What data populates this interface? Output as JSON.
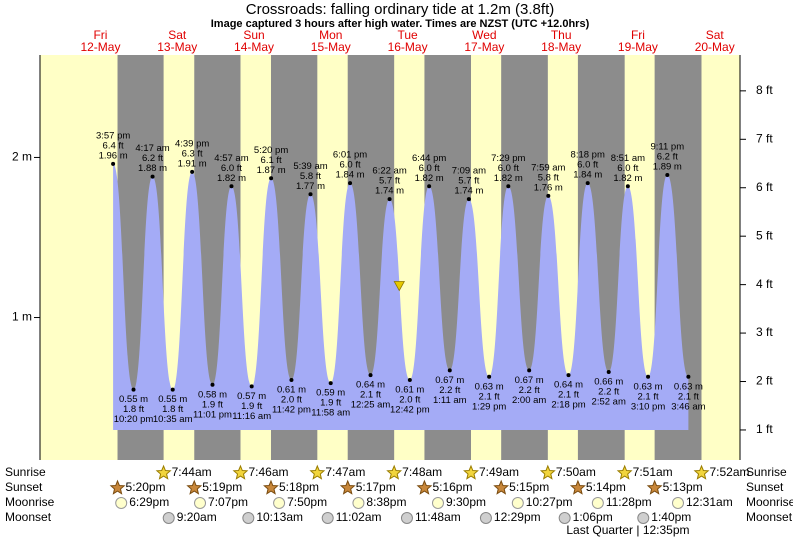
{
  "chart_data": {
    "type": "tide",
    "title": "Crossroads: falling  ordinary tide at 1.2m (3.8ft)",
    "subtitle": "Image captured 3 hours after high water. Times are NZST (UTC +12.0hrs)",
    "xlim": [
      -6.9,
      211.9
    ],
    "ylim": [
      0.11,
      2.64
    ],
    "yticks": [
      {
        "value": 1,
        "label": "1 m"
      },
      {
        "value": 2,
        "label": "2 m"
      }
    ],
    "y2lim": [
      0.38,
      8.74
    ],
    "y2ticks": [
      {
        "value": 1,
        "label": "1 ft"
      },
      {
        "value": 2,
        "label": "2 ft"
      },
      {
        "value": 3,
        "label": "3 ft"
      },
      {
        "value": 4,
        "label": "4 ft"
      },
      {
        "value": 5,
        "label": "5 ft"
      },
      {
        "value": 6,
        "label": "6 ft"
      },
      {
        "value": 7,
        "label": "7 ft"
      },
      {
        "value": 8,
        "label": "8 ft"
      }
    ],
    "colors": {
      "water": "#a4abf6",
      "night": "#8c8c8c",
      "day": "#ffffc6",
      "marker": "#e6c800"
    },
    "marker": {
      "x": 105.4,
      "m": 1.2
    },
    "row_labels": {
      "sunrise": "Sunrise",
      "sunset": "Sunset",
      "moonrise": "Moonrise",
      "moonset": "Moonset"
    },
    "days": [
      {
        "weekday": "Fri",
        "date": "12-May",
        "sunset": "5:20pm",
        "moonrise": "6:29pm",
        "tides": [
          {
            "time": "3:57 pm",
            "m": 1.96,
            "m_label": "1.96 m",
            "ft": 6.4,
            "ft_label": "6.4 ft"
          },
          {
            "time": "10:20 pm",
            "m": 0.55,
            "m_label": "0.55 m",
            "ft": 1.8,
            "ft_label": "1.8 ft"
          }
        ]
      },
      {
        "weekday": "Sat",
        "date": "13-May",
        "sunrise": "7:44am",
        "sunset": "5:19pm",
        "moonrise": "7:07pm",
        "moonset": "9:20am",
        "tides": [
          {
            "time": "4:17 am",
            "m": 1.88,
            "m_label": "1.88 m",
            "ft": 6.2,
            "ft_label": "6.2 ft"
          },
          {
            "time": "10:35 am",
            "m": 0.55,
            "m_label": "0.55 m",
            "ft": 1.8,
            "ft_label": "1.8 ft"
          },
          {
            "time": "4:39 pm",
            "m": 1.91,
            "m_label": "1.91 m",
            "ft": 6.3,
            "ft_label": "6.3 ft"
          },
          {
            "time": "11:01 pm",
            "m": 0.58,
            "m_label": "0.58 m",
            "ft": 1.9,
            "ft_label": "1.9 ft"
          }
        ]
      },
      {
        "weekday": "Sun",
        "date": "14-May",
        "sunrise": "7:46am",
        "sunset": "5:18pm",
        "moonrise": "7:50pm",
        "moonset": "10:13am",
        "tides": [
          {
            "time": "4:57 am",
            "m": 1.82,
            "m_label": "1.82 m",
            "ft": 6.0,
            "ft_label": "6.0 ft"
          },
          {
            "time": "11:16 am",
            "m": 0.57,
            "m_label": "0.57 m",
            "ft": 1.9,
            "ft_label": "1.9 ft"
          },
          {
            "time": "5:20 pm",
            "m": 1.87,
            "m_label": "1.87 m",
            "ft": 6.1,
            "ft_label": "6.1 ft"
          },
          {
            "time": "11:42 pm",
            "m": 0.61,
            "m_label": "0.61 m",
            "ft": 2.0,
            "ft_label": "2.0 ft"
          }
        ]
      },
      {
        "weekday": "Mon",
        "date": "15-May",
        "sunrise": "7:47am",
        "sunset": "5:17pm",
        "moonrise": "8:38pm",
        "moonset": "11:02am",
        "tides": [
          {
            "time": "5:39 am",
            "m": 1.77,
            "m_label": "1.77 m",
            "ft": 5.8,
            "ft_label": "5.8 ft"
          },
          {
            "time": "11:58 am",
            "m": 0.59,
            "m_label": "0.59 m",
            "ft": 1.9,
            "ft_label": "1.9 ft"
          },
          {
            "time": "6:01 pm",
            "m": 1.84,
            "m_label": "1.84 m",
            "ft": 6.0,
            "ft_label": "6.0 ft"
          }
        ]
      },
      {
        "weekday": "Tue",
        "date": "16-May",
        "sunrise": "7:48am",
        "sunset": "5:16pm",
        "moonrise": "9:30pm",
        "moonset": "11:48am",
        "tides": [
          {
            "time": "12:25 am",
            "m": 0.64,
            "m_label": "0.64 m",
            "ft": 2.1,
            "ft_label": "2.1 ft"
          },
          {
            "time": "6:22 am",
            "m": 1.74,
            "m_label": "1.74 m",
            "ft": 5.7,
            "ft_label": "5.7 ft"
          },
          {
            "time": "12:42 pm",
            "m": 0.61,
            "m_label": "0.61 m",
            "ft": 2.0,
            "ft_label": "2.0 ft"
          },
          {
            "time": "6:44 pm",
            "m": 1.82,
            "m_label": "1.82 m",
            "ft": 6.0,
            "ft_label": "6.0 ft"
          }
        ]
      },
      {
        "weekday": "Wed",
        "date": "17-May",
        "sunrise": "7:49am",
        "sunset": "5:15pm",
        "moonrise": "10:27pm",
        "moonset": "12:29pm",
        "tides": [
          {
            "time": "1:11 am",
            "m": 0.67,
            "m_label": "0.67 m",
            "ft": 2.2,
            "ft_label": "2.2 ft"
          },
          {
            "time": "7:09 am",
            "m": 1.74,
            "m_label": "1.74 m",
            "ft": 5.7,
            "ft_label": "5.7 ft"
          },
          {
            "time": "1:29 pm",
            "m": 0.63,
            "m_label": "0.63 m",
            "ft": 2.1,
            "ft_label": "2.1 ft"
          },
          {
            "time": "7:29 pm",
            "m": 1.82,
            "m_label": "1.82 m",
            "ft": 6.0,
            "ft_label": "6.0 ft"
          }
        ]
      },
      {
        "weekday": "Thu",
        "date": "18-May",
        "sunrise": "7:50am",
        "sunset": "5:14pm",
        "moonrise": "11:28pm",
        "moonset": "1:06pm",
        "tides": [
          {
            "time": "2:00 am",
            "m": 0.67,
            "m_label": "0.67 m",
            "ft": 2.2,
            "ft_label": "2.2 ft"
          },
          {
            "time": "7:59 am",
            "m": 1.76,
            "m_label": "1.76 m",
            "ft": 5.8,
            "ft_label": "5.8 ft"
          },
          {
            "time": "2:18 pm",
            "m": 0.64,
            "m_label": "0.64 m",
            "ft": 2.1,
            "ft_label": "2.1 ft"
          },
          {
            "time": "8:18 pm",
            "m": 1.84,
            "m_label": "1.84 m",
            "ft": 6.0,
            "ft_label": "6.0 ft"
          }
        ]
      },
      {
        "weekday": "Fri",
        "date": "19-May",
        "sunrise": "7:51am",
        "sunset": "5:13pm",
        "moonset": "1:40pm",
        "moon_phase": "Last Quarter | 12:35pm",
        "tides": [
          {
            "time": "2:52 am",
            "m": 0.66,
            "m_label": "0.66 m",
            "ft": 2.2,
            "ft_label": "2.2 ft"
          },
          {
            "time": "8:51 am",
            "m": 1.82,
            "m_label": "1.82 m",
            "ft": 6.0,
            "ft_label": "6.0 ft"
          },
          {
            "time": "3:10 pm",
            "m": 0.63,
            "m_label": "0.63 m",
            "ft": 2.1,
            "ft_label": "2.1 ft"
          },
          {
            "time": "9:11 pm",
            "m": 1.89,
            "m_label": "1.89 m",
            "ft": 6.2,
            "ft_label": "6.2 ft"
          }
        ]
      },
      {
        "weekday": "Sat",
        "date": "20-May",
        "sunrise": "7:52am",
        "moonrise": "12:31am",
        "tides": [
          {
            "time": "3:46 am",
            "m": 0.63,
            "m_label": "0.63 m",
            "ft": 2.1,
            "ft_label": "2.1 ft"
          }
        ]
      }
    ]
  }
}
